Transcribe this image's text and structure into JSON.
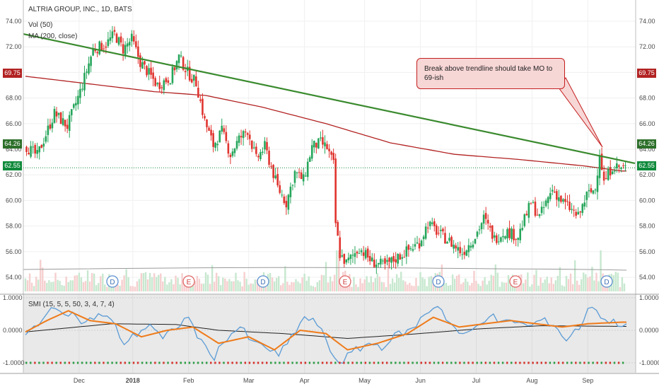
{
  "header": {
    "symbol_line": "ALTRIA GROUP, INC., 1D, BATS",
    "volume_label": "Vol (50)",
    "ma_label": "MA (200, close)"
  },
  "annotation": {
    "text": "Break above trendline should take MO to 69-ish"
  },
  "price_tags": {
    "left_upper": "69.75",
    "left_mid": "64.26",
    "left_last": "62.55",
    "right_upper": "69.75",
    "right_mid": "64.26",
    "right_last": "62.55"
  },
  "smi_pane": {
    "label": "SMI (15, 5, 5, 50, 3, 4, 7, 4)"
  },
  "colors": {
    "up": "#26a65b",
    "down": "#e0342f",
    "trendline": "#3a8a2e",
    "ma": "#b22222",
    "last_price": "#108a3c",
    "smi": "#5b9bd5",
    "smi_signal": "#ef7b1a",
    "smi_long": "#222222",
    "callout_border": "#c41e1e"
  },
  "chart_data": [
    {
      "type": "candlestick",
      "title": "ALTRIA GROUP, INC., 1D, BATS",
      "x_ticks": [
        "Dec",
        "2018",
        "Feb",
        "Mar",
        "Apr",
        "May",
        "Jun",
        "Jul",
        "Aug",
        "Sep"
      ],
      "y_ticks": [
        "74.00",
        "72.00",
        "70.00",
        "68.00",
        "66.00",
        "64.00",
        "62.00",
        "60.00",
        "58.00",
        "56.00",
        "54.00"
      ],
      "ylim": [
        53.5,
        74.8
      ],
      "price_path": [
        [
          0,
          64.3
        ],
        [
          6,
          63.5
        ],
        [
          14,
          66.8
        ],
        [
          20,
          65.8
        ],
        [
          26,
          68.5
        ],
        [
          32,
          71.8
        ],
        [
          38,
          72.2
        ],
        [
          42,
          73.0
        ],
        [
          46,
          71.8
        ],
        [
          50,
          72.6
        ],
        [
          54,
          70.8
        ],
        [
          58,
          69.9
        ],
        [
          62,
          69.0
        ],
        [
          68,
          69.6
        ],
        [
          72,
          71.2
        ],
        [
          76,
          70.0
        ],
        [
          80,
          69.2
        ],
        [
          84,
          66.2
        ],
        [
          88,
          64.3
        ],
        [
          92,
          65.4
        ],
        [
          96,
          63.6
        ],
        [
          100,
          64.8
        ],
        [
          104,
          65.5
        ],
        [
          108,
          63.2
        ],
        [
          112,
          64.2
        ],
        [
          118,
          61.0
        ],
        [
          122,
          59.8
        ],
        [
          126,
          62.2
        ],
        [
          130,
          61.6
        ],
        [
          134,
          64.2
        ],
        [
          138,
          64.5
        ],
        [
          141,
          64.1
        ],
        [
          144,
          62.8
        ],
        [
          145,
          58.2
        ],
        [
          147,
          55.8
        ],
        [
          150,
          55.1
        ],
        [
          156,
          56.3
        ],
        [
          162,
          55.2
        ],
        [
          168,
          54.9
        ],
        [
          176,
          55.8
        ],
        [
          184,
          56.7
        ],
        [
          188,
          58.2
        ],
        [
          194,
          57.3
        ],
        [
          198,
          56.8
        ],
        [
          204,
          55.9
        ],
        [
          210,
          57.2
        ],
        [
          214,
          58.6
        ],
        [
          219,
          57.0
        ],
        [
          224,
          57.6
        ],
        [
          230,
          57.2
        ],
        [
          236,
          59.8
        ],
        [
          240,
          58.7
        ],
        [
          246,
          60.9
        ],
        [
          250,
          60.0
        ],
        [
          254,
          59.4
        ],
        [
          258,
          58.7
        ],
        [
          262,
          60.4
        ],
        [
          266,
          60.9
        ],
        [
          268,
          63.8
        ],
        [
          270,
          61.4
        ],
        [
          274,
          62.7
        ],
        [
          278,
          62.55
        ]
      ],
      "ma200_path": [
        [
          0,
          69.7
        ],
        [
          30,
          69.1
        ],
        [
          60,
          68.5
        ],
        [
          84,
          68.2
        ],
        [
          110,
          67.3
        ],
        [
          140,
          66.0
        ],
        [
          170,
          64.5
        ],
        [
          200,
          63.6
        ],
        [
          230,
          63.2
        ],
        [
          260,
          62.7
        ],
        [
          278,
          62.3
        ]
      ],
      "trendline": {
        "from": [
          0,
          73.0
        ],
        "to": [
          280,
          62.9
        ]
      },
      "last_price": 62.55,
      "annotations": [
        "Break above trendline should take MO to 69-ish"
      ],
      "event_markers": [
        "D",
        "E",
        "D",
        "E",
        "D",
        "E",
        "D"
      ],
      "series": [
        {
          "name": "Vol (50)"
        },
        {
          "name": "MA (200, close)"
        }
      ]
    },
    {
      "type": "line",
      "title": "SMI (15, 5, 5, 50, 3, 4, 7, 4)",
      "y_ticks": [
        "1.0000",
        "0.0000",
        "-1.0000"
      ],
      "ylim": [
        -1.15,
        1.15
      ],
      "smi_path": [
        [
          0,
          -0.2
        ],
        [
          8,
          0.4
        ],
        [
          15,
          0.7
        ],
        [
          22,
          0.5
        ],
        [
          28,
          0.2
        ],
        [
          34,
          0.5
        ],
        [
          40,
          0.3
        ],
        [
          46,
          -0.4
        ],
        [
          52,
          -0.1
        ],
        [
          58,
          0.2
        ],
        [
          64,
          -0.3
        ],
        [
          70,
          0.1
        ],
        [
          76,
          0.4
        ],
        [
          82,
          -0.4
        ],
        [
          88,
          -0.8
        ],
        [
          94,
          -0.2
        ],
        [
          100,
          0.1
        ],
        [
          106,
          -0.4
        ],
        [
          112,
          -0.5
        ],
        [
          118,
          -0.8
        ],
        [
          124,
          -0.2
        ],
        [
          130,
          0.4
        ],
        [
          136,
          0.2
        ],
        [
          142,
          -0.6
        ],
        [
          146,
          -1.0
        ],
        [
          152,
          -0.7
        ],
        [
          160,
          -0.4
        ],
        [
          166,
          -0.5
        ],
        [
          174,
          -0.1
        ],
        [
          180,
          0.0
        ],
        [
          186,
          0.5
        ],
        [
          192,
          0.8
        ],
        [
          198,
          0.2
        ],
        [
          204,
          -0.2
        ],
        [
          210,
          0.1
        ],
        [
          216,
          0.5
        ],
        [
          222,
          0.2
        ],
        [
          228,
          0.3
        ],
        [
          234,
          0.1
        ],
        [
          240,
          0.3
        ],
        [
          246,
          0.2
        ],
        [
          252,
          -0.3
        ],
        [
          258,
          0.1
        ],
        [
          264,
          0.8
        ],
        [
          270,
          0.3
        ],
        [
          278,
          0.2
        ]
      ],
      "signal_path": [
        [
          0,
          -0.05
        ],
        [
          10,
          0.3
        ],
        [
          20,
          0.6
        ],
        [
          30,
          0.3
        ],
        [
          42,
          0.2
        ],
        [
          54,
          -0.2
        ],
        [
          66,
          0.0
        ],
        [
          78,
          0.1
        ],
        [
          90,
          -0.4
        ],
        [
          104,
          -0.2
        ],
        [
          116,
          -0.6
        ],
        [
          128,
          0.0
        ],
        [
          140,
          -0.1
        ],
        [
          150,
          -0.6
        ],
        [
          164,
          -0.4
        ],
        [
          178,
          -0.1
        ],
        [
          190,
          0.4
        ],
        [
          202,
          0.1
        ],
        [
          214,
          0.2
        ],
        [
          226,
          0.3
        ],
        [
          238,
          0.2
        ],
        [
          250,
          0.1
        ],
        [
          262,
          0.2
        ],
        [
          278,
          0.25
        ]
      ],
      "long_path": [
        [
          0,
          -0.05
        ],
        [
          40,
          0.2
        ],
        [
          70,
          0.18
        ],
        [
          90,
          0.0
        ],
        [
          120,
          -0.1
        ],
        [
          150,
          -0.25
        ],
        [
          180,
          -0.12
        ],
        [
          210,
          0.04
        ],
        [
          240,
          0.14
        ],
        [
          278,
          0.12
        ]
      ]
    }
  ]
}
